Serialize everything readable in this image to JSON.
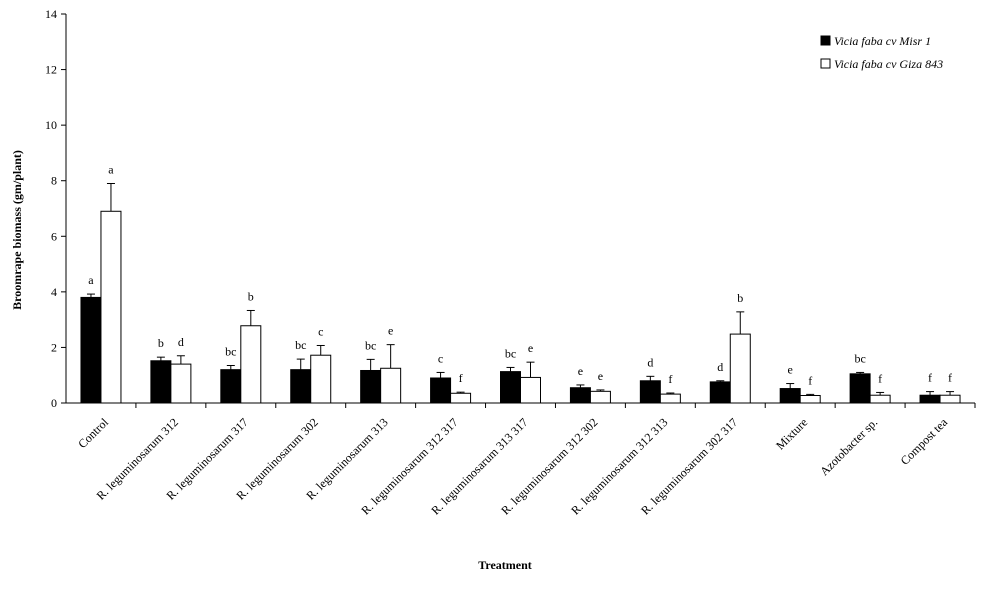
{
  "chart_data": {
    "type": "bar",
    "title": "",
    "xlabel": "Treatment",
    "ylabel": "Broomrape biomass (gm/plant)",
    "ylim": [
      0,
      14
    ],
    "yticks": [
      0,
      2,
      4,
      6,
      8,
      10,
      12,
      14
    ],
    "grid": false,
    "legend_position": "top-right",
    "categories": [
      "Control",
      "R. leguminosarum 312",
      "R. leguminosarum 317",
      "R. leguminosarum 302",
      "R. leguminosarum 313",
      "R. leguminosarum 312  317",
      "R. leguminosarum 313  317",
      "R. leguminosarum 312  302",
      "R. leguminosarum 312  313",
      "R. leguminosarum 302  317",
      "Mixture",
      "Azotobacter sp.",
      "Compost tea"
    ],
    "series": [
      {
        "name": "Vicia faba cv Misr 1",
        "color": "#000000",
        "values": [
          3.8,
          1.52,
          1.2,
          1.2,
          1.17,
          0.9,
          1.13,
          0.55,
          0.8,
          0.76,
          0.52,
          1.05,
          0.28
        ],
        "errors": [
          0.12,
          0.13,
          0.15,
          0.38,
          0.4,
          0.2,
          0.15,
          0.1,
          0.16,
          0.04,
          0.18,
          0.05,
          0.13
        ],
        "letters": [
          "a",
          "b",
          "bc",
          "bc",
          "bc",
          "c",
          "bc",
          "e",
          "d",
          "d",
          "e",
          "bc",
          "f"
        ]
      },
      {
        "name": "Vicia faba cv Giza 843",
        "color": "#ffffff",
        "values": [
          6.9,
          1.4,
          2.78,
          1.72,
          1.25,
          0.35,
          0.92,
          0.42,
          0.32,
          2.48,
          0.27,
          0.28,
          0.28
        ],
        "errors": [
          1.0,
          0.3,
          0.55,
          0.35,
          0.85,
          0.04,
          0.55,
          0.05,
          0.04,
          0.8,
          0.04,
          0.1,
          0.13
        ],
        "letters": [
          "a",
          "d",
          "b",
          "c",
          "e",
          "f",
          "e",
          "e",
          "f",
          "b",
          "f",
          "f",
          "f"
        ]
      }
    ]
  }
}
